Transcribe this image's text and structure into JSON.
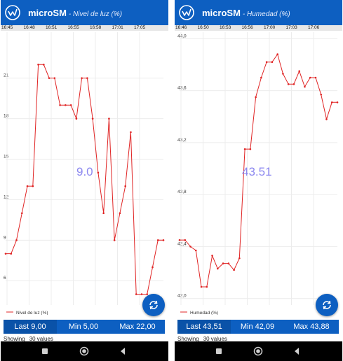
{
  "panels": [
    {
      "app_name": "microSM",
      "sensor_name": "- Nivel de luz (%)",
      "time_ticks": [
        "16:45",
        "16:48",
        "16:51",
        "16:55",
        "16:58",
        "17:01",
        "17:05"
      ],
      "current_value": "9.0",
      "stats": {
        "last": "Last 9,00",
        "min": "Min 5,00",
        "max": "Max 22,00"
      },
      "showing_label": "Showing",
      "showing_count": "30 values",
      "chart_data": {
        "type": "line",
        "series": [
          {
            "name": "Nivel de luz (%)",
            "values": [
              8,
              8,
              9,
              11,
              13,
              13,
              22,
              22,
              21,
              21,
              19,
              19,
              19,
              18,
              21,
              21,
              18,
              14,
              11,
              18,
              9,
              11,
              13,
              17,
              5,
              5,
              5,
              7,
              9,
              9
            ]
          }
        ],
        "ylim": [
          4.2,
          24.4
        ],
        "y_ticks": [
          6,
          9,
          12,
          15,
          18,
          21
        ],
        "y_tick_labels": [
          "6",
          "9",
          "12",
          "15",
          "18",
          "21"
        ],
        "legend": "Nivel de luz (%)",
        "grid": true,
        "color": "#e02424"
      }
    },
    {
      "app_name": "microSM",
      "sensor_name": "- Humedad (%)",
      "time_ticks": [
        "16:46",
        "16:50",
        "16:53",
        "16:56",
        "17:00",
        "17:03",
        "17:06"
      ],
      "current_value": "43.51",
      "stats": {
        "last": "Last 43,51",
        "min": "Min 42,09",
        "max": "Max 43,88"
      },
      "showing_label": "Showing",
      "showing_count": "30 values",
      "chart_data": {
        "type": "line",
        "series": [
          {
            "name": "Humedad (%)",
            "values": [
              42.45,
              42.45,
              42.4,
              42.37,
              42.09,
              42.09,
              42.33,
              42.23,
              42.27,
              42.27,
              42.22,
              42.31,
              43.15,
              43.15,
              43.55,
              43.7,
              43.82,
              43.82,
              43.88,
              43.73,
              43.65,
              43.65,
              43.75,
              43.63,
              43.7,
              43.7,
              43.57,
              43.38,
              43.51,
              43.51
            ]
          }
        ],
        "ylim": [
          41.95,
          44.05
        ],
        "y_ticks": [
          42.0,
          42.4,
          42.8,
          43.2,
          43.6,
          44.0
        ],
        "y_tick_labels": [
          "42,0",
          "42,4",
          "42,8",
          "43,2",
          "43,6",
          "44,0"
        ],
        "legend": "Humedad (%)",
        "grid": true,
        "color": "#e02424"
      }
    }
  ]
}
